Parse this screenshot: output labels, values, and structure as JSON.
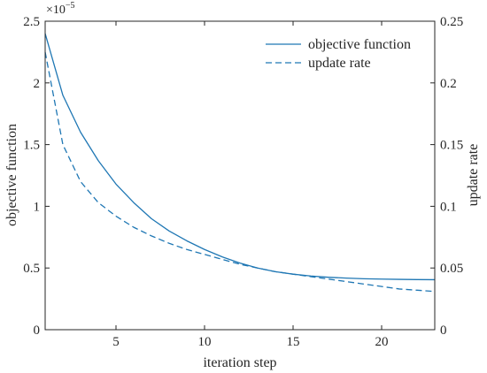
{
  "chart_data": {
    "type": "line",
    "xlabel": "iteration step",
    "ylabel_left": "objective function",
    "ylabel_right": "update rate",
    "left_axis_multiplier": "×10",
    "left_axis_exponent": "−5",
    "xlim": [
      1,
      23
    ],
    "ylim_left": [
      0,
      2.5
    ],
    "ylim_right": [
      0,
      0.25
    ],
    "x_ticks": [
      5,
      10,
      15,
      20
    ],
    "y_left_ticks": [
      0,
      0.5,
      1,
      1.5,
      2,
      2.5
    ],
    "y_left_tick_labels": [
      "0",
      "0.5",
      "1",
      "1.5",
      "2",
      "2.5"
    ],
    "y_right_ticks": [
      0,
      0.05,
      0.1,
      0.15,
      0.2,
      0.25
    ],
    "y_right_tick_labels": [
      "0",
      "0.05",
      "0.1",
      "0.15",
      "0.2",
      "0.25"
    ],
    "grid": false,
    "legend_position": "top-right",
    "x": [
      1,
      2,
      3,
      4,
      5,
      6,
      7,
      8,
      9,
      10,
      11,
      12,
      13,
      14,
      15,
      16,
      17,
      18,
      19,
      20,
      21,
      22,
      23
    ],
    "series": [
      {
        "name": "objective function",
        "axis": "left",
        "style": "solid",
        "color": "#1f77b4",
        "values": [
          2.4,
          1.9,
          1.6,
          1.37,
          1.18,
          1.03,
          0.9,
          0.8,
          0.72,
          0.65,
          0.59,
          0.54,
          0.5,
          0.47,
          0.45,
          0.435,
          0.425,
          0.418,
          0.413,
          0.41,
          0.408,
          0.406,
          0.405
        ]
      },
      {
        "name": "update rate",
        "axis": "right",
        "style": "dashed",
        "color": "#1f77b4",
        "values": [
          0.225,
          0.15,
          0.12,
          0.103,
          0.092,
          0.083,
          0.076,
          0.07,
          0.065,
          0.061,
          0.057,
          0.053,
          0.05,
          0.047,
          0.045,
          0.043,
          0.041,
          0.039,
          0.037,
          0.035,
          0.033,
          0.032,
          0.031
        ]
      }
    ]
  }
}
